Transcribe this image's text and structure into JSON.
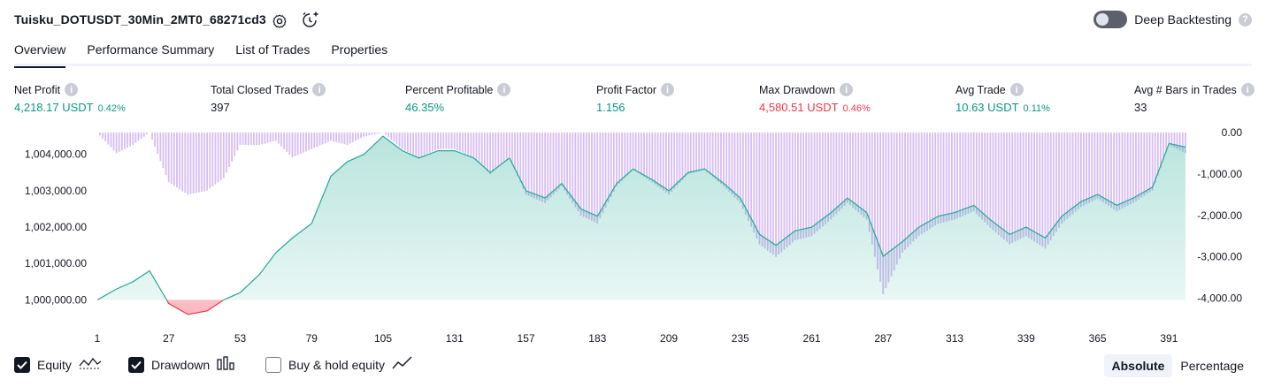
{
  "header": {
    "title": "Tuisku_DOTUSDT_30Min_2MT0_68271cd3",
    "deep_backtesting_label": "Deep Backtesting",
    "help_glyph": "?"
  },
  "tabs": [
    {
      "label": "Overview"
    },
    {
      "label": "Performance Summary"
    },
    {
      "label": "List of Trades"
    },
    {
      "label": "Properties"
    }
  ],
  "metrics": [
    {
      "label": "Net Profit",
      "value": "4,218.17 USDT",
      "pct": "0.42%"
    },
    {
      "label": "Total Closed Trades",
      "value": "397"
    },
    {
      "label": "Percent Profitable",
      "value": "46.35%"
    },
    {
      "label": "Profit Factor",
      "value": "1.156"
    },
    {
      "label": "Max Drawdown",
      "value": "4,580.51 USDT",
      "pct": "0.46%"
    },
    {
      "label": "Avg Trade",
      "value": "10.63 USDT",
      "pct": "0.11%"
    },
    {
      "label": "Avg # Bars in Trades",
      "value": "33"
    }
  ],
  "colors": {
    "green": "#089981",
    "red": "#f23645",
    "equity_line": "#22ab94",
    "drawdown_bar": "#c9a6f0"
  },
  "chart_data": {
    "type": "area",
    "title": "",
    "series": [
      {
        "name": "Equity",
        "x": [
          1,
          8,
          14,
          20,
          27,
          34,
          41,
          47,
          53,
          60,
          66,
          72,
          79,
          86,
          92,
          98,
          105,
          112,
          118,
          125,
          131,
          138,
          144,
          151,
          157,
          164,
          170,
          177,
          183,
          190,
          196,
          203,
          209,
          216,
          222,
          229,
          235,
          242,
          248,
          255,
          261,
          268,
          274,
          281,
          287,
          294,
          300,
          307,
          313,
          320,
          326,
          333,
          339,
          346,
          352,
          359,
          365,
          372,
          378,
          385,
          391,
          397
        ],
        "values": [
          1000000,
          1000300,
          1000500,
          1000800,
          999900,
          999600,
          999700,
          1000000,
          1000200,
          1000700,
          1001300,
          1001700,
          1002100,
          1003400,
          1003800,
          1004000,
          1004500,
          1004100,
          1003900,
          1004100,
          1004100,
          1003900,
          1003500,
          1003900,
          1003000,
          1002800,
          1003200,
          1002500,
          1002300,
          1003200,
          1003600,
          1003300,
          1003000,
          1003500,
          1003600,
          1003200,
          1002800,
          1001800,
          1001500,
          1001900,
          1002000,
          1002400,
          1002800,
          1002400,
          1001200,
          1001600,
          1002000,
          1002300,
          1002400,
          1002600,
          1002200,
          1001800,
          1002000,
          1001700,
          1002300,
          1002700,
          1002900,
          1002600,
          1002800,
          1003100,
          1004300,
          1004200
        ]
      },
      {
        "name": "Drawdown",
        "x": [
          1,
          8,
          14,
          20,
          27,
          34,
          41,
          47,
          53,
          60,
          66,
          72,
          79,
          86,
          92,
          98,
          105,
          112,
          118,
          125,
          131,
          138,
          144,
          151,
          157,
          164,
          170,
          177,
          183,
          190,
          196,
          203,
          209,
          216,
          222,
          229,
          235,
          242,
          248,
          255,
          261,
          268,
          274,
          281,
          287,
          294,
          300,
          307,
          313,
          320,
          326,
          333,
          339,
          346,
          352,
          359,
          365,
          372,
          378,
          385,
          391,
          397
        ],
        "values": [
          0,
          -500,
          -300,
          0,
          -1200,
          -1500,
          -1400,
          -1100,
          -300,
          -300,
          -200,
          -600,
          -400,
          -200,
          -300,
          -100,
          0,
          -400,
          -600,
          -400,
          -400,
          -600,
          -1000,
          -600,
          -1500,
          -1700,
          -1300,
          -2000,
          -2200,
          -1300,
          -900,
          -1200,
          -1500,
          -1000,
          -900,
          -1300,
          -1700,
          -2700,
          -3000,
          -2600,
          -2500,
          -2100,
          -1700,
          -2100,
          -3900,
          -2900,
          -2500,
          -2200,
          -2100,
          -1900,
          -2300,
          -2700,
          -2500,
          -2800,
          -2200,
          -1800,
          -1600,
          -1900,
          -1700,
          -1400,
          -300,
          -500
        ]
      }
    ],
    "x_ticks": [
      "1",
      "27",
      "53",
      "79",
      "105",
      "131",
      "157",
      "183",
      "209",
      "235",
      "261",
      "287",
      "313",
      "339",
      "365",
      "391"
    ],
    "y_left_ticks": [
      "1,000,000.00",
      "1,001,000.00",
      "1,002,000.00",
      "1,003,000.00",
      "1,004,000.00"
    ],
    "y_right_ticks": [
      "0.00",
      "-1,000.00",
      "-2,000.00",
      "-3,000.00",
      "-4,000.00"
    ],
    "y_left_range": [
      999500,
      1004600
    ],
    "y_right_range": [
      -4500,
      0
    ],
    "baseline_value": 1000000,
    "x_range": [
      1,
      397
    ]
  },
  "legend": {
    "equity_label": "Equity",
    "drawdown_label": "Drawdown",
    "buyhold_label": "Buy & hold equity",
    "absolute_label": "Absolute",
    "percentage_label": "Percentage"
  }
}
